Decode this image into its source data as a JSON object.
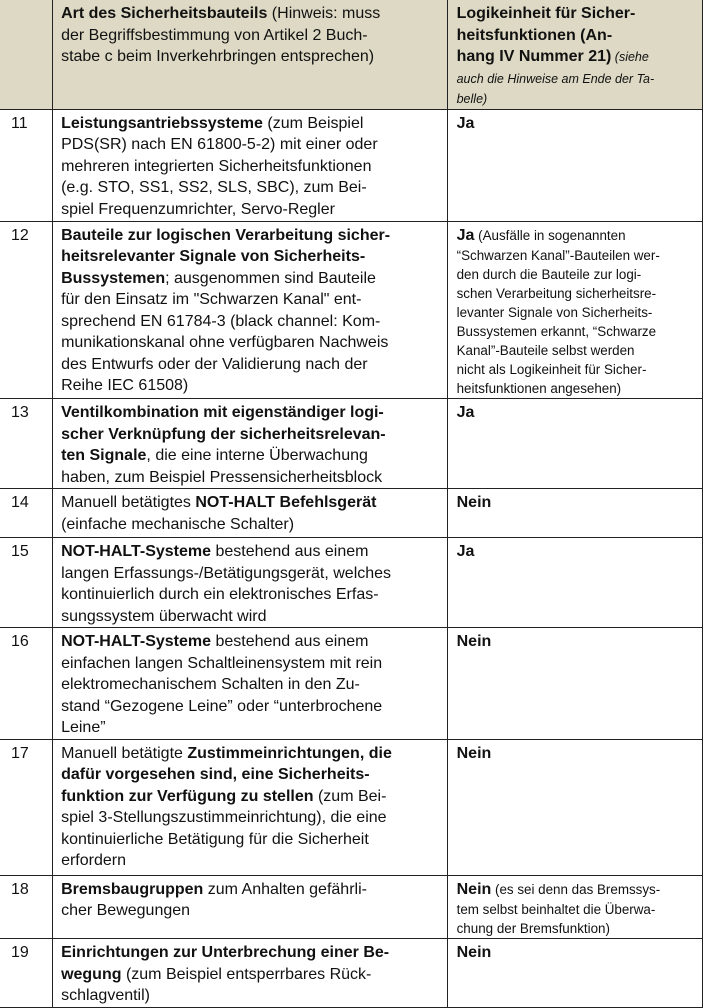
{
  "header": {
    "col1": "",
    "col2": [
      [
        {
          "t": "Art des Sicherheitsbauteils",
          "s": "b"
        },
        {
          "t": " (Hinweis: muss",
          "s": "n"
        }
      ],
      [
        {
          "t": "der Begriffsbestimmung von Artikel 2 Buch-",
          "s": "n"
        }
      ],
      [
        {
          "t": "stabe c beim Inverkehrbringen entsprechen)",
          "s": "n"
        }
      ]
    ],
    "col3": [
      [
        {
          "t": "Logikeinheit für Sicher-",
          "s": "b"
        }
      ],
      [
        {
          "t": "heitsfunktionen (An-",
          "s": "b"
        }
      ],
      [
        {
          "t": "hang IV Nummer 21)",
          "s": "b"
        },
        {
          "t": " (siehe",
          "s": "i"
        }
      ],
      [
        {
          "t": "auch die Hinweise am Ende der Ta-",
          "s": "i"
        }
      ],
      [
        {
          "t": "belle)",
          "s": "i"
        }
      ]
    ]
  },
  "rows": [
    {
      "num": "11",
      "desc": [
        [
          {
            "t": "Leistungsantriebssysteme",
            "s": "b"
          },
          {
            "t": " (zum Beispiel",
            "s": "n"
          }
        ],
        [
          {
            "t": "PDS(SR) nach EN 61800-5-2) mit einer oder",
            "s": "n"
          }
        ],
        [
          {
            "t": "mehreren integrierten Sicherheitsfunktionen",
            "s": "n"
          }
        ],
        [
          {
            "t": "(e.g. STO, SS1, SS2, SLS, SBC), zum Bei-",
            "s": "n"
          }
        ],
        [
          {
            "t": "spiel Frequenzumrichter, Servo-Regler",
            "s": "n"
          }
        ]
      ],
      "logic": [
        [
          {
            "t": "Ja",
            "s": "b"
          }
        ]
      ]
    },
    {
      "num": "12",
      "desc": [
        [
          {
            "t": "Bauteile zur logischen Verarbeitung sicher-",
            "s": "b"
          }
        ],
        [
          {
            "t": "heitsrelevanter Signale von Sicherheits-",
            "s": "b"
          }
        ],
        [
          {
            "t": "Bussystemen",
            "s": "b"
          },
          {
            "t": "; ausgenommen sind Bauteile",
            "s": "n"
          }
        ],
        [
          {
            "t": "für den Einsatz im \"Schwarzen Kanal\" ent-",
            "s": "n"
          }
        ],
        [
          {
            "t": "sprechend EN 61784-3 (black channel: Kom-",
            "s": "n"
          }
        ],
        [
          {
            "t": "munikationskanal ohne verfügbaren Nachweis",
            "s": "n"
          }
        ],
        [
          {
            "t": "des Entwurfs oder der Validierung nach der",
            "s": "n"
          }
        ],
        [
          {
            "t": "Reihe IEC 61508)",
            "s": "n"
          }
        ]
      ],
      "logic": [
        [
          {
            "t": "Ja",
            "s": "b"
          },
          {
            "t": "  (Ausfälle in sogenannten",
            "s": "s"
          }
        ],
        [
          {
            "t": "“Schwarzen Kanal”-Bauteilen wer-",
            "s": "s"
          }
        ],
        [
          {
            "t": "den durch die Bauteile zur logi-",
            "s": "s"
          }
        ],
        [
          {
            "t": "schen Verarbeitung sicherheitsre-",
            "s": "s"
          }
        ],
        [
          {
            "t": "levanter Signale von Sicherheits-",
            "s": "s"
          }
        ],
        [
          {
            "t": "Bussystemen erkannt, “Schwarze",
            "s": "s"
          }
        ],
        [
          {
            "t": "Kanal”-Bauteile selbst werden",
            "s": "s"
          }
        ],
        [
          {
            "t": "nicht als Logikeinheit für Sicher-",
            "s": "s"
          }
        ],
        [
          {
            "t": "heitsfunktionen angesehen)",
            "s": "s"
          }
        ]
      ]
    },
    {
      "num": "13",
      "desc": [
        [
          {
            "t": "Ventilkombination mit eigenständiger logi-",
            "s": "b"
          }
        ],
        [
          {
            "t": "scher Verknüpfung der sicherheitsrelevan-",
            "s": "b"
          }
        ],
        [
          {
            "t": "ten Signale",
            "s": "b"
          },
          {
            "t": ", die eine interne Überwachung",
            "s": "n"
          }
        ],
        [
          {
            "t": "haben, zum Beispiel Pressensicherheitsblock",
            "s": "n"
          }
        ]
      ],
      "logic": [
        [
          {
            "t": "Ja",
            "s": "b"
          }
        ]
      ]
    },
    {
      "num": "14",
      "desc": [
        [
          {
            "t": "Manuell betätigtes ",
            "s": "n"
          },
          {
            "t": "NOT-HALT Befehlsgerät",
            "s": "b"
          }
        ],
        [
          {
            "t": "(einfache mechanische Schalter)",
            "s": "n"
          }
        ]
      ],
      "logic": [
        [
          {
            "t": "Nein",
            "s": "b"
          }
        ]
      ]
    },
    {
      "num": "15",
      "desc": [
        [
          {
            "t": "NOT-HALT-Systeme",
            "s": "b"
          },
          {
            "t": " bestehend aus einem",
            "s": "n"
          }
        ],
        [
          {
            "t": "langen Erfassungs-/Betätigungsgerät, welches",
            "s": "n"
          }
        ],
        [
          {
            "t": "kontinuierlich durch ein elektronisches Erfas-",
            "s": "n"
          }
        ],
        [
          {
            "t": "sungssystem überwacht wird",
            "s": "n"
          }
        ]
      ],
      "logic": [
        [
          {
            "t": "Ja",
            "s": "b"
          }
        ]
      ]
    },
    {
      "num": "16",
      "desc": [
        [
          {
            "t": "NOT-HALT-Systeme",
            "s": "b"
          },
          {
            "t": " bestehend aus einem",
            "s": "n"
          }
        ],
        [
          {
            "t": "einfachen langen Schaltleinensystem mit rein",
            "s": "n"
          }
        ],
        [
          {
            "t": "elektromechanischem Schalten in den Zu-",
            "s": "n"
          }
        ],
        [
          {
            "t": "stand “Gezogene Leine” oder “unterbrochene",
            "s": "n"
          }
        ],
        [
          {
            "t": "Leine”",
            "s": "n"
          }
        ]
      ],
      "logic": [
        [
          {
            "t": "Nein",
            "s": "b"
          }
        ]
      ]
    },
    {
      "num": "17",
      "desc": [
        [
          {
            "t": "Manuell betätigte ",
            "s": "n"
          },
          {
            "t": "Zustimmeinrichtungen, die",
            "s": "b"
          }
        ],
        [
          {
            "t": "dafür vorgesehen sind, eine Sicherheits-",
            "s": "b"
          }
        ],
        [
          {
            "t": "funktion zur Verfügung zu stellen",
            "s": "b"
          },
          {
            "t": " (zum Bei-",
            "s": "n"
          }
        ],
        [
          {
            "t": "spiel 3-Stellungszustimmeinrichtung), die eine",
            "s": "n"
          }
        ],
        [
          {
            "t": "kontinuierliche Betätigung für die Sicherheit",
            "s": "n"
          }
        ],
        [
          {
            "t": "erfordern",
            "s": "n"
          }
        ]
      ],
      "logic": [
        [
          {
            "t": "Nein",
            "s": "b"
          }
        ]
      ]
    },
    {
      "num": "18",
      "desc": [
        [
          {
            "t": "Bremsbaugruppen",
            "s": "b"
          },
          {
            "t": " zum Anhalten gefährli-",
            "s": "n"
          }
        ],
        [
          {
            "t": "cher Bewegungen",
            "s": "n"
          }
        ]
      ],
      "logic": [
        [
          {
            "t": "Nein",
            "s": "b"
          },
          {
            "t": " (es sei denn das Bremssys-",
            "s": "s"
          }
        ],
        [
          {
            "t": "tem selbst beinhaltet die Überwa-",
            "s": "s"
          }
        ],
        [
          {
            "t": "chung der Bremsfunktion)",
            "s": "s"
          }
        ]
      ]
    },
    {
      "num": "19",
      "desc": [
        [
          {
            "t": "Einrichtungen zur Unterbrechung einer Be-",
            "s": "b"
          }
        ],
        [
          {
            "t": "wegung",
            "s": "b"
          },
          {
            "t": " (zum Beispiel entsperrbares Rück-",
            "s": "n"
          }
        ],
        [
          {
            "t": "schlagventil)",
            "s": "n"
          }
        ]
      ],
      "logic": [
        [
          {
            "t": "Nein",
            "s": "b"
          }
        ]
      ]
    }
  ]
}
